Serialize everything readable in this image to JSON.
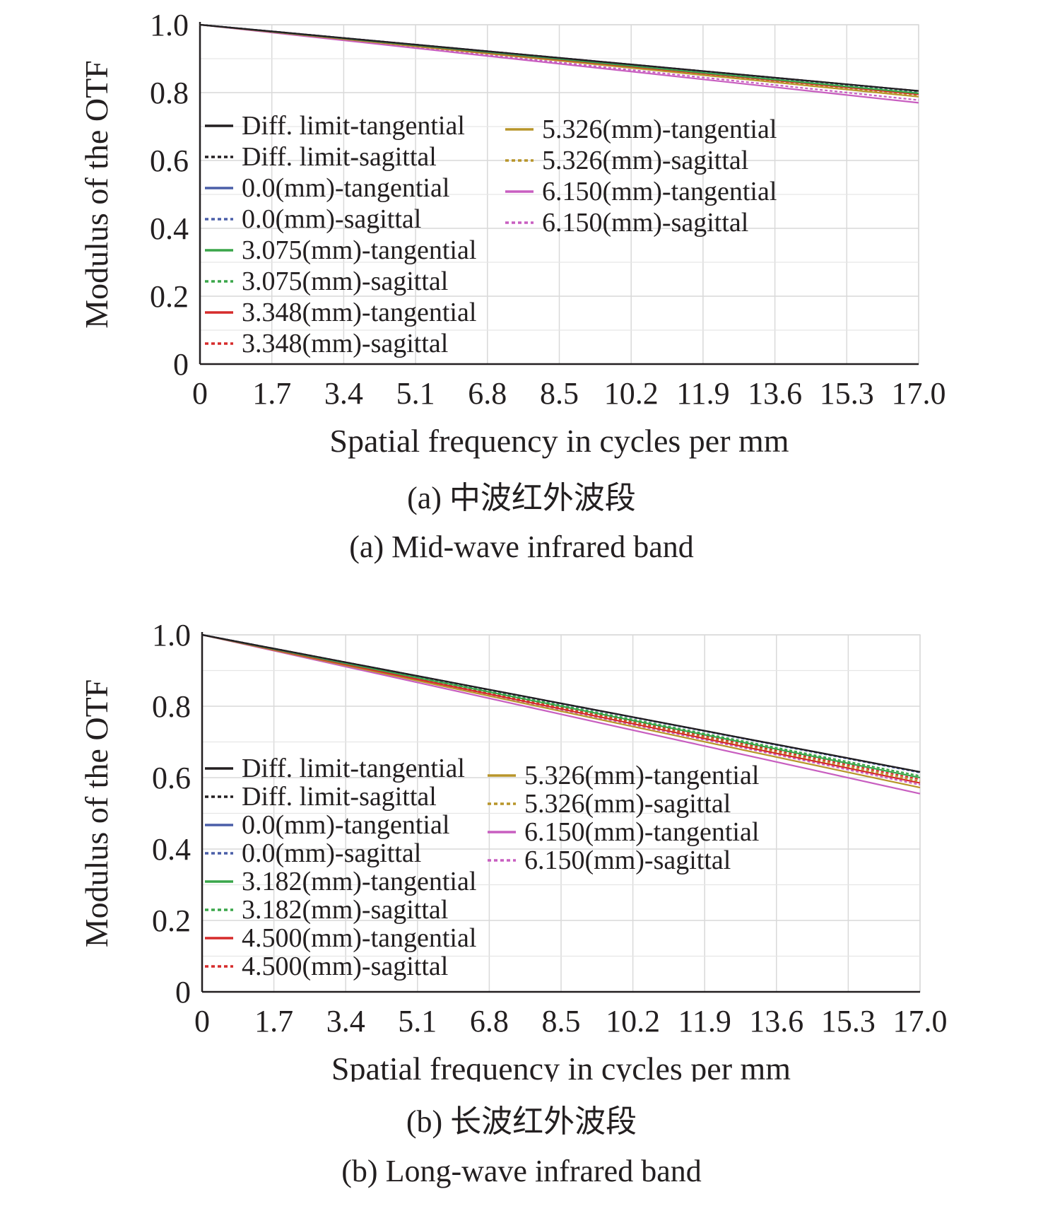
{
  "chart_data": [
    {
      "type": "line",
      "ylabel": "Modulus of the OTF",
      "xlabel": "Spatial frequency in cycles per mm",
      "caption_cn": "(a) 中波红外波段",
      "caption_en": "(a) Mid-wave infrared band",
      "xlim": [
        0,
        17.0
      ],
      "ylim": [
        0,
        1.0
      ],
      "xticks": [
        "0",
        "1.7",
        "3.4",
        "5.1",
        "6.8",
        "8.5",
        "10.2",
        "11.9",
        "13.6",
        "15.3",
        "17.0"
      ],
      "yticks": [
        "0",
        "0.2",
        "0.4",
        "0.6",
        "0.8",
        "1.0"
      ],
      "grid": true,
      "legend_position": "center-left",
      "series": [
        {
          "name": "Diff. limit-tangential",
          "color": "#231f20",
          "dash": "solid",
          "x": [
            0,
            17.0
          ],
          "y": [
            1.0,
            0.805
          ]
        },
        {
          "name": "Diff. limit-sagittal",
          "color": "#231f20",
          "dash": "dotted",
          "x": [
            0,
            17.0
          ],
          "y": [
            1.0,
            0.805
          ]
        },
        {
          "name": "0.0(mm)-tangential",
          "color": "#4a5ea8",
          "dash": "solid",
          "x": [
            0,
            17.0
          ],
          "y": [
            1.0,
            0.805
          ]
        },
        {
          "name": "0.0(mm)-sagittal",
          "color": "#4a5ea8",
          "dash": "dotted",
          "x": [
            0,
            17.0
          ],
          "y": [
            1.0,
            0.804
          ]
        },
        {
          "name": "3.075(mm)-tangential",
          "color": "#3aa64a",
          "dash": "solid",
          "x": [
            0,
            17.0
          ],
          "y": [
            1.0,
            0.798
          ]
        },
        {
          "name": "3.075(mm)-sagittal",
          "color": "#3aa64a",
          "dash": "dotted",
          "x": [
            0,
            17.0
          ],
          "y": [
            1.0,
            0.8
          ]
        },
        {
          "name": "3.348(mm)-tangential",
          "color": "#d62b2b",
          "dash": "solid",
          "x": [
            0,
            17.0
          ],
          "y": [
            1.0,
            0.795
          ]
        },
        {
          "name": "3.348(mm)-sagittal",
          "color": "#d62b2b",
          "dash": "dotted",
          "x": [
            0,
            17.0
          ],
          "y": [
            1.0,
            0.797
          ]
        },
        {
          "name": "5.326(mm)-tangential",
          "color": "#b8952a",
          "dash": "solid",
          "x": [
            0,
            17.0
          ],
          "y": [
            1.0,
            0.788
          ]
        },
        {
          "name": "5.326(mm)-sagittal",
          "color": "#b8952a",
          "dash": "dotted",
          "x": [
            0,
            17.0
          ],
          "y": [
            1.0,
            0.792
          ]
        },
        {
          "name": "6.150(mm)-tangential",
          "color": "#c85ec0",
          "dash": "solid",
          "x": [
            0,
            17.0
          ],
          "y": [
            1.0,
            0.77
          ]
        },
        {
          "name": "6.150(mm)-sagittal",
          "color": "#c85ec0",
          "dash": "dotted",
          "x": [
            0,
            17.0
          ],
          "y": [
            1.0,
            0.778
          ]
        }
      ]
    },
    {
      "type": "line",
      "ylabel": "Modulus of the OTF",
      "xlabel": "Spatial frequency in cycles per mm",
      "caption_cn": "(b) 长波红外波段",
      "caption_en": "(b) Long-wave infrared band",
      "xlim": [
        0,
        17.0
      ],
      "ylim": [
        0,
        1.0
      ],
      "xticks": [
        "0",
        "1.7",
        "3.4",
        "5.1",
        "6.8",
        "8.5",
        "10.2",
        "11.9",
        "13.6",
        "15.3",
        "17.0"
      ],
      "yticks": [
        "0",
        "0.2",
        "0.4",
        "0.6",
        "0.8",
        "1.0"
      ],
      "grid": true,
      "legend_position": "center-left",
      "series": [
        {
          "name": "Diff. limit-tangential",
          "color": "#231f20",
          "dash": "solid",
          "x": [
            0,
            17.0
          ],
          "y": [
            1.0,
            0.616
          ]
        },
        {
          "name": "Diff. limit-sagittal",
          "color": "#231f20",
          "dash": "dotted",
          "x": [
            0,
            17.0
          ],
          "y": [
            1.0,
            0.616
          ]
        },
        {
          "name": "0.0(mm)-tangential",
          "color": "#4a5ea8",
          "dash": "solid",
          "x": [
            0,
            17.0
          ],
          "y": [
            1.0,
            0.616
          ]
        },
        {
          "name": "0.0(mm)-sagittal",
          "color": "#4a5ea8",
          "dash": "dotted",
          "x": [
            0,
            17.0
          ],
          "y": [
            1.0,
            0.614
          ]
        },
        {
          "name": "3.182(mm)-tangential",
          "color": "#3aa64a",
          "dash": "solid",
          "x": [
            0,
            17.0
          ],
          "y": [
            1.0,
            0.6
          ]
        },
        {
          "name": "3.182(mm)-sagittal",
          "color": "#3aa64a",
          "dash": "dotted",
          "x": [
            0,
            17.0
          ],
          "y": [
            1.0,
            0.605
          ]
        },
        {
          "name": "4.500(mm)-tangential",
          "color": "#d62b2b",
          "dash": "solid",
          "x": [
            0,
            17.0
          ],
          "y": [
            1.0,
            0.585
          ]
        },
        {
          "name": "4.500(mm)-sagittal",
          "color": "#d62b2b",
          "dash": "dotted",
          "x": [
            0,
            17.0
          ],
          "y": [
            1.0,
            0.595
          ]
        },
        {
          "name": "5.326(mm)-tangential",
          "color": "#b8952a",
          "dash": "solid",
          "x": [
            0,
            17.0
          ],
          "y": [
            1.0,
            0.572
          ]
        },
        {
          "name": "5.326(mm)-sagittal",
          "color": "#b8952a",
          "dash": "dotted",
          "x": [
            0,
            17.0
          ],
          "y": [
            1.0,
            0.59
          ]
        },
        {
          "name": "6.150(mm)-tangential",
          "color": "#c85ec0",
          "dash": "solid",
          "x": [
            0,
            17.0
          ],
          "y": [
            1.0,
            0.555
          ]
        },
        {
          "name": "6.150(mm)-sagittal",
          "color": "#c85ec0",
          "dash": "dotted",
          "x": [
            0,
            17.0
          ],
          "y": [
            1.0,
            0.58
          ]
        }
      ]
    }
  ]
}
